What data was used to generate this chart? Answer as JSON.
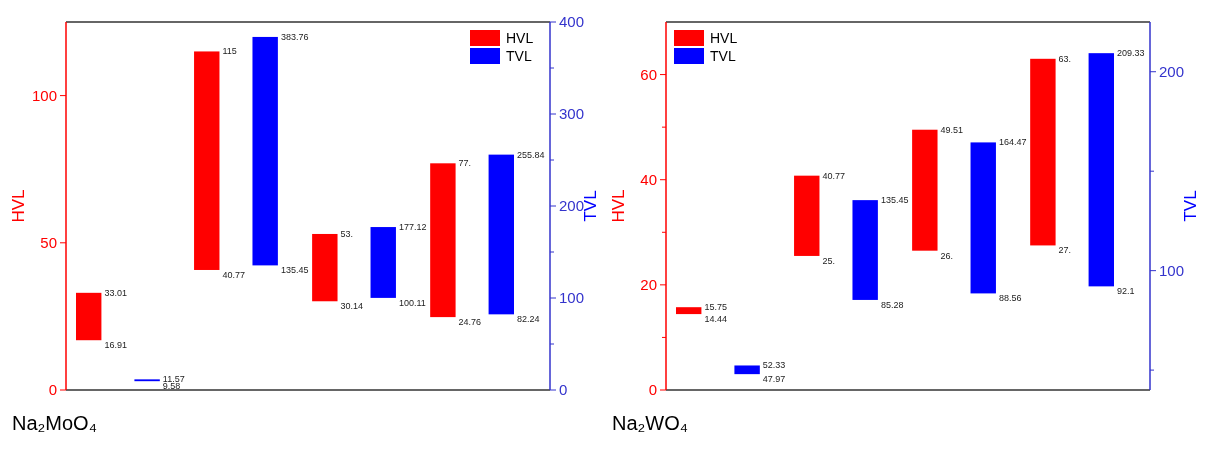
{
  "chart_data": [
    {
      "type": "bar",
      "categories": [
        null,
        null,
        null,
        null
      ],
      "ylabel": "HVL",
      "y2label": "TVL",
      "ylim": [
        0,
        125
      ],
      "yticks": [
        0,
        50,
        100
      ],
      "y2lim": [
        0,
        400
      ],
      "y2ticks": [
        0,
        {
          "value": 50,
          "label": null
        },
        100,
        {
          "value": 150,
          "label": null
        },
        200,
        {
          "value": 250,
          "label": null
        },
        300,
        {
          "value": 350,
          "label": null
        },
        400
      ],
      "legend": "top right",
      "series": [
        {
          "name": "HVL",
          "color": "#ff0000",
          "base": [
            16.91,
            40.77,
            30.14,
            24.76
          ],
          "values": [
            16.1,
            74.23,
            22.86,
            52.24
          ]
        },
        {
          "name": "TVL",
          "color": "#0000ff",
          "axis": "y2",
          "base": [
            9.58,
            135.45,
            100.11,
            82.24
          ],
          "values": [
            1.99,
            248.31,
            77.01,
            173.6
          ]
        }
      ],
      "annotations": [
        "16.91",
        "33.01",
        "40.77",
        "115",
        "30.14",
        "53.",
        "24.76",
        "77.",
        "9.58",
        "11.57",
        "135.45",
        "383.76",
        "100.11",
        "177.12",
        "82.24",
        "255.84",
        "Na₂MoO₄"
      ]
    },
    {
      "type": "bar",
      "categories": [
        null,
        null,
        null,
        null
      ],
      "ylabel": "HVL",
      "y2label": "TVL",
      "ylim": [
        0,
        70
      ],
      "yticks": [
        0,
        {
          "value": 10,
          "label": null
        },
        20,
        {
          "value": 30,
          "label": null
        },
        40,
        {
          "value": 50,
          "label": null
        },
        60
      ],
      "y2lim": [
        40,
        225
      ],
      "y2ticks": [
        {
          "value": 50,
          "label": null
        },
        100,
        {
          "value": 150,
          "label": null
        },
        200
      ],
      "legend": "top left",
      "series": [
        {
          "name": "HVL",
          "color": "#ff0000",
          "base": [
            14.44,
            25.5,
            26.5,
            27.5
          ],
          "values": [
            1.31,
            15.27,
            23.01,
            35.5
          ]
        },
        {
          "name": "TVL",
          "color": "#0000ff",
          "axis": "y2",
          "base": [
            47.97,
            85.28,
            88.56,
            92.1
          ],
          "values": [
            4.36,
            50.17,
            75.91,
            117.23
          ]
        }
      ],
      "annotations": [
        "14.44",
        "15.75",
        "25.",
        "40.77",
        "26.",
        "49.51",
        "27.",
        "63.",
        "47.97",
        "52.33",
        "85.28",
        "135.45",
        "88.56",
        "164.47",
        "92.1",
        "209.33",
        "Na₂WO₄"
      ]
    }
  ]
}
